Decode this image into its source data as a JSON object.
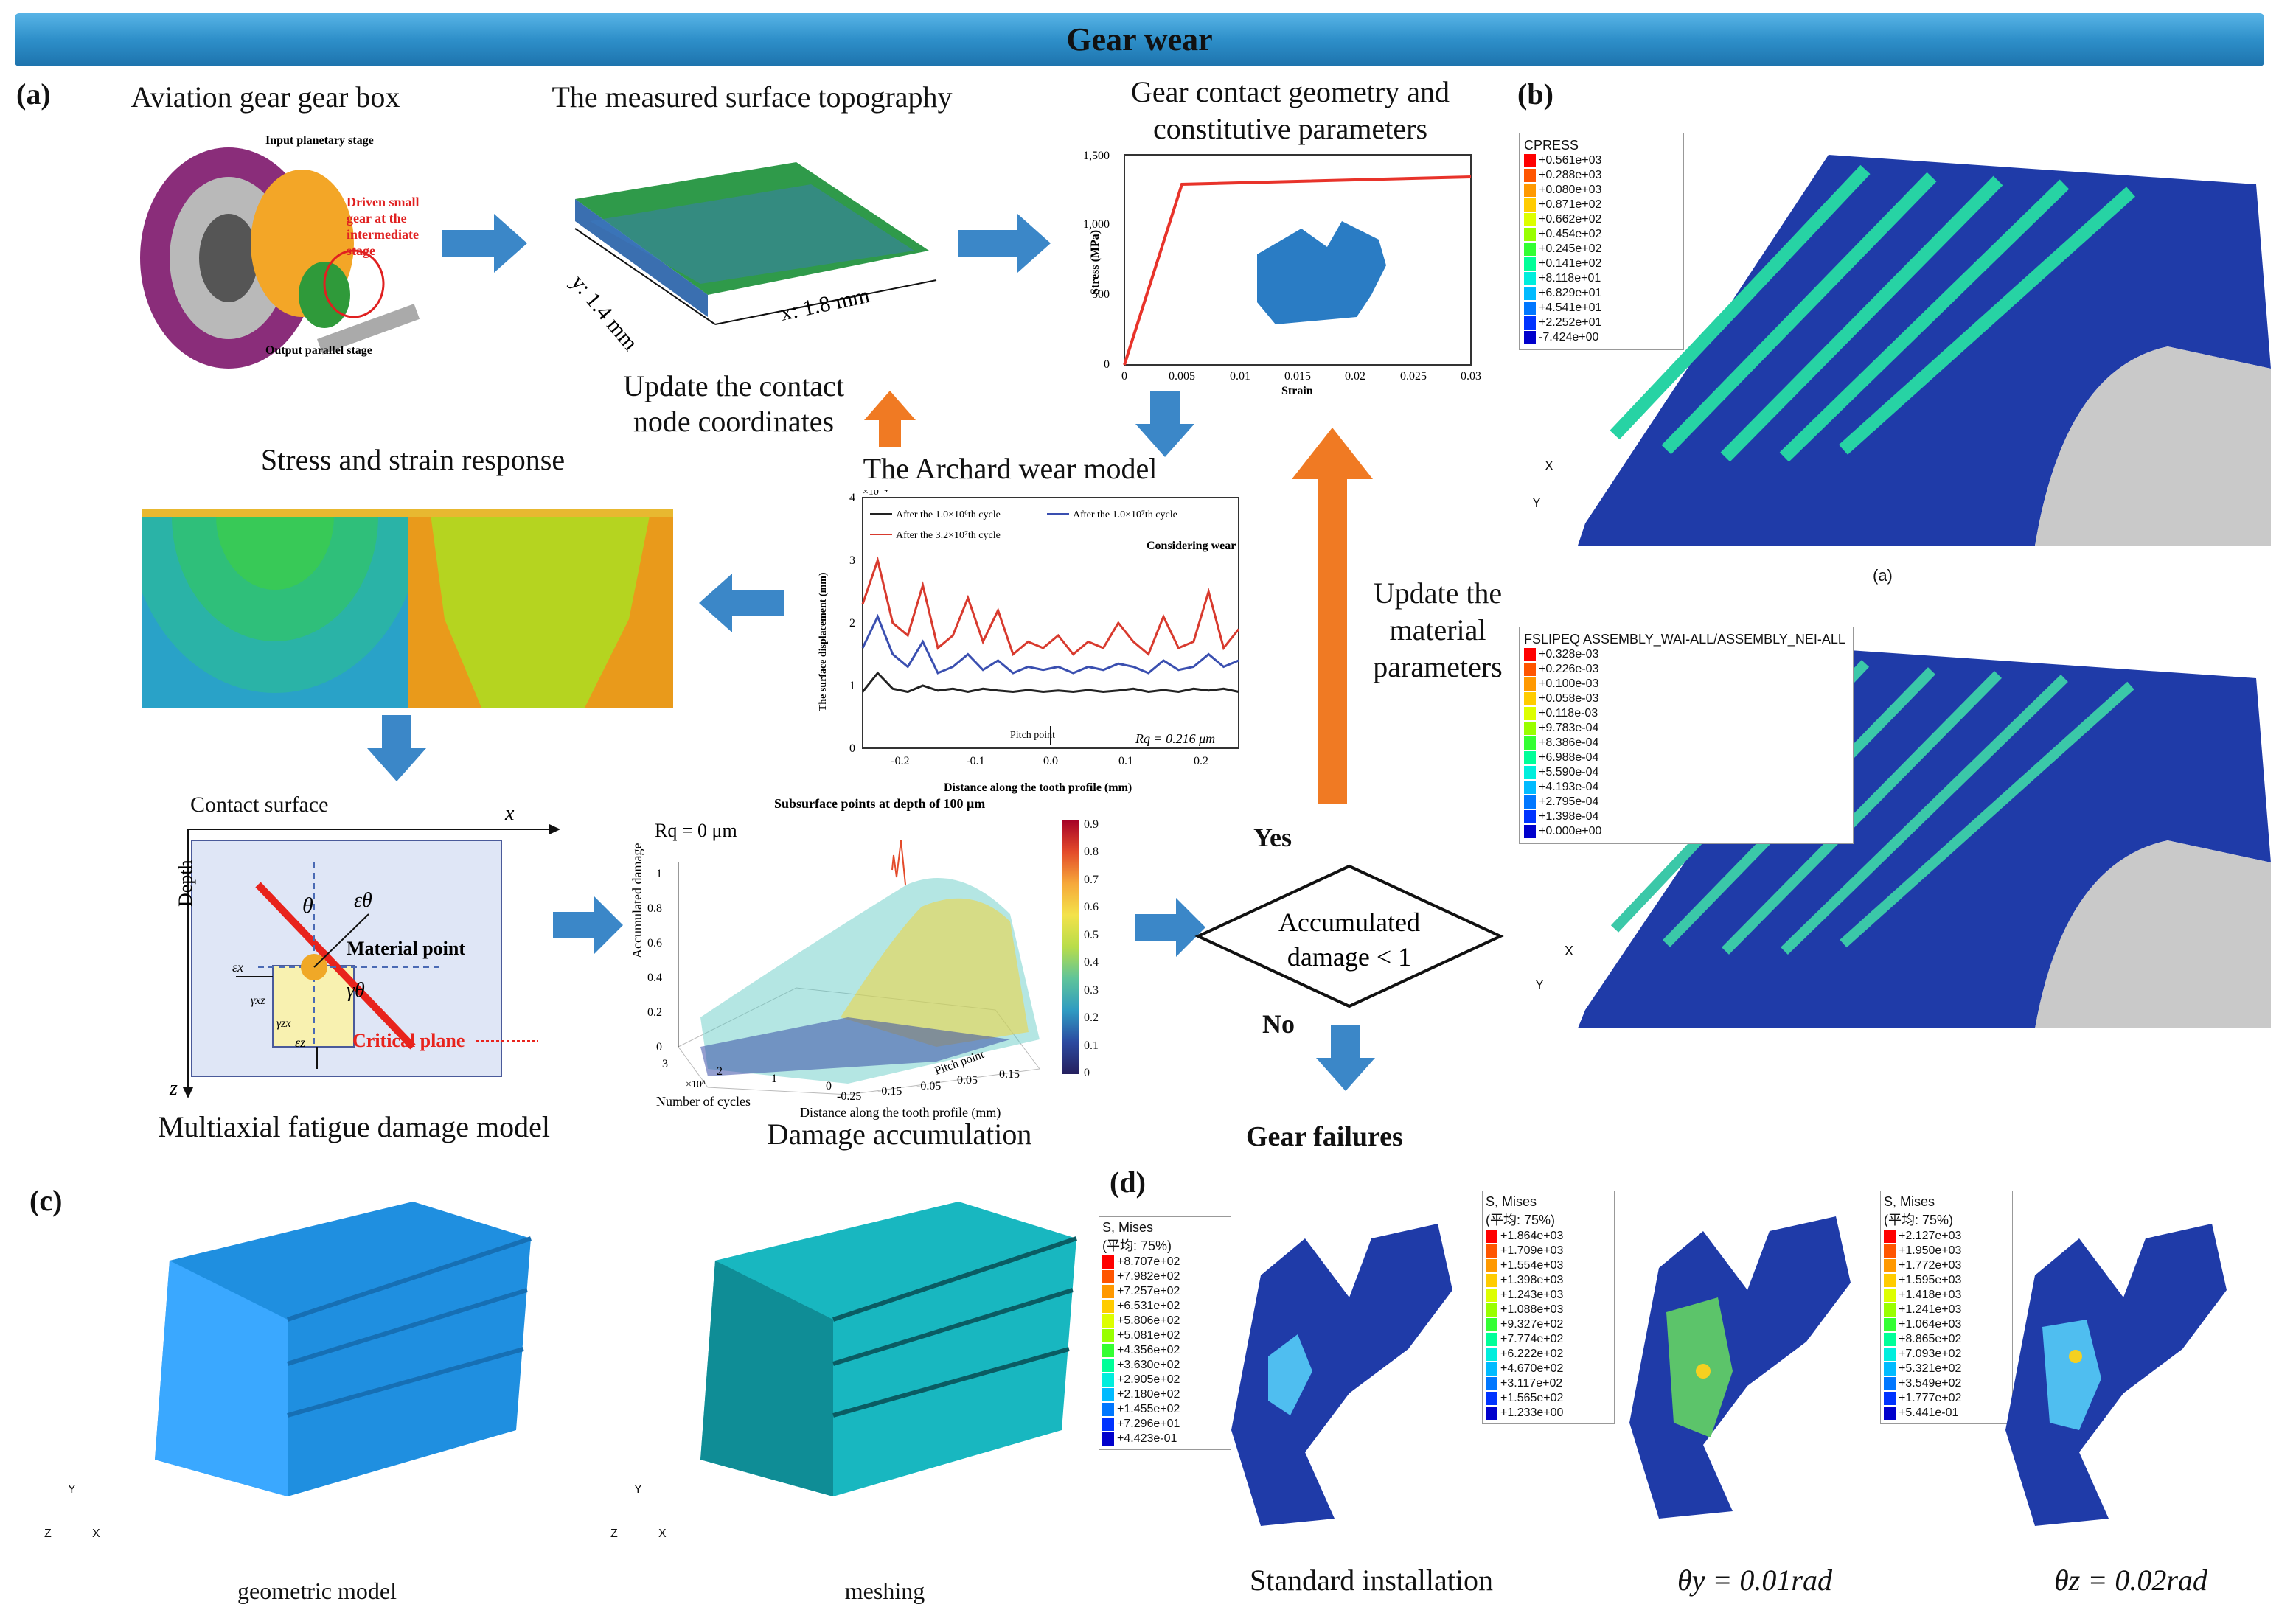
{
  "title": "Gear wear",
  "panels": {
    "a": "(a)",
    "b": "(b)",
    "c": "(c)",
    "d": "(d)"
  },
  "a": {
    "gearbox_title": "Aviation gear gear box",
    "gearbox_labels": {
      "input": "Input planetary stage",
      "driven": [
        "Driven small",
        "gear at the",
        "intermediate",
        "stage"
      ],
      "output": "Output parallel stage"
    },
    "topography_title": "The measured surface topography",
    "topo_axes": {
      "y": "y: 1.4 mm",
      "x": "x: 1.8 mm"
    },
    "update_coords": [
      "Update the contact",
      "node coordinates"
    ],
    "contact_title": [
      "Gear contact geometry and",
      "constitutive parameters"
    ],
    "stress_strain_chart": {
      "ylabel": "Stress (MPa)",
      "xlabel": "Strain",
      "yticks": [
        "0",
        "500",
        "1,000",
        "1,500"
      ],
      "xticks": [
        "0",
        "0.005",
        "0.01",
        "0.015",
        "0.02",
        "0.025",
        "0.03"
      ]
    },
    "archard_title": "The Archard wear model",
    "stress_response_title": "Stress and strain response",
    "update_material": [
      "Update the",
      "material",
      "parameters"
    ],
    "contact_surface": "Contact surface",
    "depth": "Depth",
    "axis_x": "x",
    "axis_z": "z",
    "theta": "θ",
    "eps_theta": "εθ",
    "gamma_theta": "γθ",
    "eps_x": "εx",
    "eps_z": "εz",
    "gamma_xz": "γxz",
    "gamma_zx": "γzx",
    "material_point": "Material point",
    "critical_plane": "Critical plane",
    "multiaxial_title": "Multiaxial fatigue damage model",
    "damage_title": "Damage accumulation",
    "damage_chart": {
      "title": "Subsurface points at depth of 100 μm",
      "rq": "Rq = 0  μm",
      "zlabel": "Accumulated damage",
      "ylabel": "Number of cycles",
      "xlabel": "Distance along the tooth profile (mm)",
      "pitch": "Pitch point",
      "y_exp": "×10⁸",
      "colorbar_ticks": [
        "0",
        "0.1",
        "0.2",
        "0.3",
        "0.4",
        "0.5",
        "0.6",
        "0.7",
        "0.8",
        "0.9"
      ],
      "zticks": [
        "0",
        "0.2",
        "0.4",
        "0.6",
        "0.8",
        "1"
      ],
      "yticks": [
        "0",
        "1",
        "2",
        "3"
      ],
      "xticks": [
        "-0.25",
        "-0.15",
        "-0.05",
        "0.05",
        "0.15"
      ]
    },
    "yes": "Yes",
    "no": "No",
    "decision": [
      "Accumulated",
      "damage < 1"
    ],
    "gear_failures": "Gear failures"
  },
  "wear_chart": {
    "type": "line",
    "yexp": "×10⁻⁴",
    "ylabel": "The surface displacement (mm)",
    "xlabel": "Distance along the tooth profile (mm)",
    "annotation": "Considering wear",
    "pitch_label": "Pitch point",
    "rq_label": "Rq = 0.216 μm",
    "xlim": [
      -0.25,
      0.25
    ],
    "ylim": [
      0,
      4
    ],
    "xticks": [
      "-0.2",
      "-0.1",
      "0.0",
      "0.1",
      "0.2"
    ],
    "yticks": [
      "0",
      "1",
      "2",
      "3",
      "4"
    ],
    "series": [
      {
        "name": "After the 1.0×10⁶th cycle",
        "color": "#222222",
        "x": [
          -0.25,
          -0.23,
          -0.21,
          -0.19,
          -0.17,
          -0.15,
          -0.13,
          -0.11,
          -0.09,
          -0.07,
          -0.05,
          -0.03,
          -0.01,
          0.01,
          0.03,
          0.05,
          0.07,
          0.09,
          0.11,
          0.13,
          0.15,
          0.17,
          0.19,
          0.21,
          0.23,
          0.25
        ],
        "values": [
          0.9,
          1.2,
          0.95,
          0.9,
          1.0,
          0.92,
          0.95,
          0.9,
          0.95,
          0.92,
          0.9,
          0.93,
          0.9,
          0.92,
          0.9,
          0.93,
          0.9,
          0.92,
          0.95,
          0.9,
          0.93,
          0.9,
          0.95,
          0.92,
          0.95,
          0.9
        ]
      },
      {
        "name": "After the 1.0×10⁷th cycle",
        "color": "#3a4fb0",
        "x": [
          -0.25,
          -0.23,
          -0.21,
          -0.19,
          -0.17,
          -0.15,
          -0.13,
          -0.11,
          -0.09,
          -0.07,
          -0.05,
          -0.03,
          -0.01,
          0.01,
          0.03,
          0.05,
          0.07,
          0.09,
          0.11,
          0.13,
          0.15,
          0.17,
          0.19,
          0.21,
          0.23,
          0.25
        ],
        "values": [
          1.6,
          2.1,
          1.5,
          1.3,
          1.7,
          1.2,
          1.3,
          1.5,
          1.25,
          1.4,
          1.2,
          1.3,
          1.25,
          1.3,
          1.2,
          1.3,
          1.25,
          1.35,
          1.3,
          1.2,
          1.4,
          1.25,
          1.3,
          1.5,
          1.3,
          1.4
        ]
      },
      {
        "name": "After the 3.2×10⁷th cycle",
        "color": "#d83a2e",
        "x": [
          -0.25,
          -0.23,
          -0.21,
          -0.19,
          -0.17,
          -0.15,
          -0.13,
          -0.11,
          -0.09,
          -0.07,
          -0.05,
          -0.03,
          -0.01,
          0.01,
          0.03,
          0.05,
          0.07,
          0.09,
          0.11,
          0.13,
          0.15,
          0.17,
          0.19,
          0.21,
          0.23,
          0.25
        ],
        "values": [
          2.3,
          3.0,
          2.0,
          1.8,
          2.6,
          1.6,
          1.8,
          2.4,
          1.7,
          2.2,
          1.5,
          1.7,
          1.6,
          1.8,
          1.5,
          1.7,
          1.6,
          2.0,
          1.7,
          1.5,
          2.1,
          1.6,
          1.7,
          2.5,
          1.6,
          1.9
        ]
      }
    ]
  },
  "b": {
    "top": {
      "title": "CPRESS",
      "values": [
        "+0.561e+03",
        "+0.288e+03",
        "+0.080e+03",
        "+0.871e+02",
        "+0.662e+02",
        "+0.454e+02",
        "+0.245e+02",
        "+0.141e+02",
        "+8.118e+01",
        "+6.829e+01",
        "+4.541e+01",
        "+2.252e+01",
        "-7.424e+00"
      ],
      "caption": "(a)"
    },
    "bottom": {
      "title": "FSLIPEQ  ASSEMBLY_WAI-ALL/ASSEMBLY_NEI-ALL",
      "values": [
        "+0.328e-03",
        "+0.226e-03",
        "+0.100e-03",
        "+0.058e-03",
        "+0.118e-03",
        "+9.783e-04",
        "+8.386e-04",
        "+6.988e-04",
        "+5.590e-04",
        "+4.193e-04",
        "+2.795e-04",
        "+1.398e-04",
        "+0.000e+00"
      ]
    },
    "axis": {
      "x": "X",
      "y": "Y"
    }
  },
  "c": {
    "geometric": "geometric model",
    "meshing": "meshing",
    "axes": {
      "x": "X",
      "y": "Y",
      "z": "Z"
    }
  },
  "d": {
    "legend_title": "S, Mises",
    "legend_sub": "(平均: 75%)",
    "legend1": [
      "+8.707e+02",
      "+7.982e+02",
      "+7.257e+02",
      "+6.531e+02",
      "+5.806e+02",
      "+5.081e+02",
      "+4.356e+02",
      "+3.630e+02",
      "+2.905e+02",
      "+2.180e+02",
      "+1.455e+02",
      "+7.296e+01",
      "+4.423e-01"
    ],
    "legend2": [
      "+1.864e+03",
      "+1.709e+03",
      "+1.554e+03",
      "+1.398e+03",
      "+1.243e+03",
      "+1.088e+03",
      "+9.327e+02",
      "+7.774e+02",
      "+6.222e+02",
      "+4.670e+02",
      "+3.117e+02",
      "+1.565e+02",
      "+1.233e+00"
    ],
    "legend3": [
      "+2.127e+03",
      "+1.950e+03",
      "+1.772e+03",
      "+1.595e+03",
      "+1.418e+03",
      "+1.241e+03",
      "+1.064e+03",
      "+8.865e+02",
      "+7.093e+02",
      "+5.321e+02",
      "+3.549e+02",
      "+1.777e+02",
      "+5.441e-01"
    ],
    "cap1": "Standard installation",
    "cap2": "θy = 0.01rad",
    "cap3": "θz = 0.02rad"
  },
  "colors": {
    "arrow_blue": "#3b87c8",
    "arrow_orange": "#f07a23",
    "legend": [
      "#ff0000",
      "#ff5500",
      "#ff9900",
      "#ffcc00",
      "#ddff00",
      "#99ff00",
      "#33ff33",
      "#00ff99",
      "#00eedd",
      "#00bbff",
      "#0077ff",
      "#0033ff",
      "#0000cc"
    ]
  }
}
